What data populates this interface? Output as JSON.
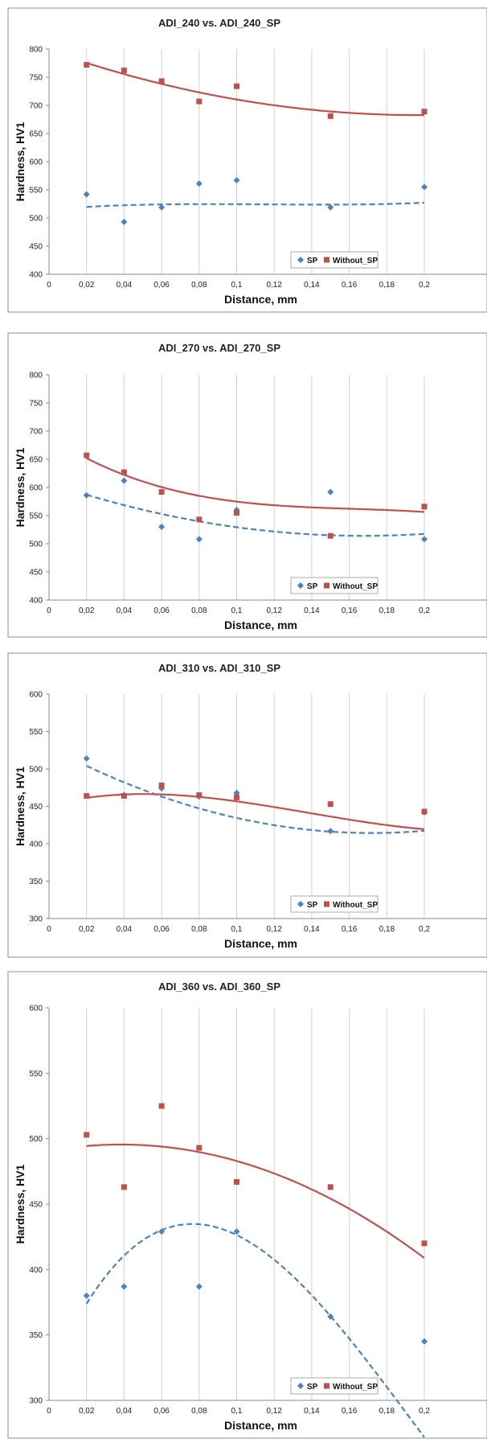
{
  "chart_data": [
    {
      "type": "scatter",
      "title": "ADI_240 vs. ADI_240_SP",
      "xlabel": "Distance, mm",
      "ylabel": "Hardness, HV1",
      "xlim": [
        0,
        0.2
      ],
      "ylim": [
        400,
        800
      ],
      "x_ticks": [
        "0",
        "0,02",
        "0,04",
        "0,06",
        "0,08",
        "0,1",
        "0,12",
        "0,14",
        "0,16",
        "0,18",
        "0,2"
      ],
      "y_ticks": [
        "400",
        "450",
        "500",
        "550",
        "600",
        "650",
        "700",
        "750",
        "800"
      ],
      "grid": "vertical",
      "legend": "bottom-right",
      "series": [
        {
          "name": "SP",
          "marker": "diamond",
          "color": "#4f81bd",
          "trend": "dashed",
          "points": [
            [
              0.02,
              542
            ],
            [
              0.04,
              493
            ],
            [
              0.06,
              519
            ],
            [
              0.08,
              561
            ],
            [
              0.1,
              567
            ],
            [
              0.15,
              519
            ],
            [
              0.2,
              555
            ]
          ],
          "trend_coefficients": [
            514.93,
            285.71,
            -2678.6,
            7767.9
          ]
        },
        {
          "name": "Without_SP",
          "marker": "square",
          "color": "#c0504d",
          "trend": "solid",
          "points": [
            [
              0.02,
              772
            ],
            [
              0.04,
              762
            ],
            [
              0.06,
              743
            ],
            [
              0.08,
              707
            ],
            [
              0.1,
              734
            ],
            [
              0.15,
              681
            ],
            [
              0.2,
              689
            ]
          ],
          "trend_coefficients": [
            797.6,
            -1169.4,
            2976.2
          ]
        }
      ]
    },
    {
      "type": "scatter",
      "title": "ADI_270 vs. ADI_270_SP",
      "xlabel": "Distance, mm",
      "ylabel": "Hardness, HV1",
      "xlim": [
        0,
        0.2
      ],
      "ylim": [
        400,
        800
      ],
      "x_ticks": [
        "0",
        "0,02",
        "0,04",
        "0,06",
        "0,08",
        "0,1",
        "0,12",
        "0,14",
        "0,16",
        "0,18",
        "0,2"
      ],
      "y_ticks": [
        "400",
        "450",
        "500",
        "550",
        "600",
        "650",
        "700",
        "750",
        "800"
      ],
      "grid": "vertical",
      "legend": "bottom-right",
      "series": [
        {
          "name": "SP",
          "marker": "diamond",
          "color": "#4f81bd",
          "trend": "dashed",
          "points": [
            [
              0.02,
              586
            ],
            [
              0.04,
              612
            ],
            [
              0.06,
              530
            ],
            [
              0.08,
              508
            ],
            [
              0.1,
              560
            ],
            [
              0.15,
              592
            ],
            [
              0.2,
              508
            ]
          ],
          "trend_coefficients": [
            608.1,
            -1122.3,
            3348.2
          ]
        },
        {
          "name": "Without_SP",
          "marker": "square",
          "color": "#c0504d",
          "trend": "solid",
          "points": [
            [
              0.02,
              657
            ],
            [
              0.04,
              627
            ],
            [
              0.06,
              592
            ],
            [
              0.08,
              543
            ],
            [
              0.1,
              555
            ],
            [
              0.15,
              514
            ],
            [
              0.2,
              566
            ]
          ],
          "trend_coefficients": [
            690.19,
            -2158.5,
            12656.0,
            -26042.0
          ]
        }
      ]
    },
    {
      "type": "scatter",
      "title": "ADI_310 vs. ADI_310_SP",
      "xlabel": "Distance, mm",
      "ylabel": "Hardness, HV1",
      "xlim": [
        0,
        0.2
      ],
      "ylim": [
        300,
        600
      ],
      "x_ticks": [
        "0",
        "0,02",
        "0,04",
        "0,06",
        "0,08",
        "0,1",
        "0,12",
        "0,14",
        "0,16",
        "0,18",
        "0,2"
      ],
      "y_ticks": [
        "300",
        "350",
        "400",
        "450",
        "500",
        "550",
        "600"
      ],
      "grid": "vertical",
      "legend": "bottom-right",
      "series": [
        {
          "name": "SP",
          "marker": "diamond",
          "color": "#4f81bd",
          "trend": "dashed",
          "points": [
            [
              0.02,
              514
            ],
            [
              0.04,
              465
            ],
            [
              0.06,
              474
            ],
            [
              0.08,
              463
            ],
            [
              0.1,
              468
            ],
            [
              0.15,
              417
            ],
            [
              0.2,
              442
            ]
          ],
          "trend_coefficients": [
            529.38,
            -1337.5,
            3888.9
          ]
        },
        {
          "name": "Without_SP",
          "marker": "square",
          "color": "#c0504d",
          "trend": "solid",
          "points": [
            [
              0.02,
              464
            ],
            [
              0.04,
              464
            ],
            [
              0.06,
              478
            ],
            [
              0.08,
              465
            ],
            [
              0.1,
              462
            ],
            [
              0.15,
              453
            ],
            [
              0.2,
              443
            ]
          ],
          "trend_coefficients": [
            451.55,
            637.15,
            -7723.9,
            18683.0
          ]
        }
      ]
    },
    {
      "type": "scatter",
      "title": "ADI_360 vs. ADI_360_SP",
      "xlabel": "Distance, mm",
      "ylabel": "Hardness, HV1",
      "xlim": [
        0,
        0.2
      ],
      "ylim": [
        300,
        600
      ],
      "x_ticks": [
        "0",
        "0,02",
        "0,04",
        "0,06",
        "0,08",
        "0,1",
        "0,12",
        "0,14",
        "0,16",
        "0,18",
        "0,2"
      ],
      "y_ticks": [
        "300",
        "350",
        "400",
        "450",
        "500",
        "550",
        "600"
      ],
      "grid": "vertical",
      "legend": "bottom-right",
      "series": [
        {
          "name": "SP",
          "marker": "diamond",
          "color": "#4f81bd",
          "trend": "dashed",
          "points": [
            [
              0.02,
              380
            ],
            [
              0.04,
              387
            ],
            [
              0.06,
              429
            ],
            [
              0.08,
              387
            ],
            [
              0.1,
              429
            ],
            [
              0.15,
              364
            ],
            [
              0.2,
              345
            ]
          ],
          "trend_coefficients": [
            317.49,
            3342.9,
            -27232.0,
            46875.0
          ]
        },
        {
          "name": "Without_SP",
          "marker": "square",
          "color": "#c0504d",
          "trend": "solid",
          "points": [
            [
              0.02,
              503
            ],
            [
              0.04,
              463
            ],
            [
              0.06,
              525
            ],
            [
              0.08,
              493
            ],
            [
              0.1,
              467
            ],
            [
              0.15,
              463
            ],
            [
              0.2,
              420
            ]
          ],
          "trend_coefficients": [
            490.6,
            255.76,
            -3323.6
          ]
        }
      ]
    }
  ]
}
